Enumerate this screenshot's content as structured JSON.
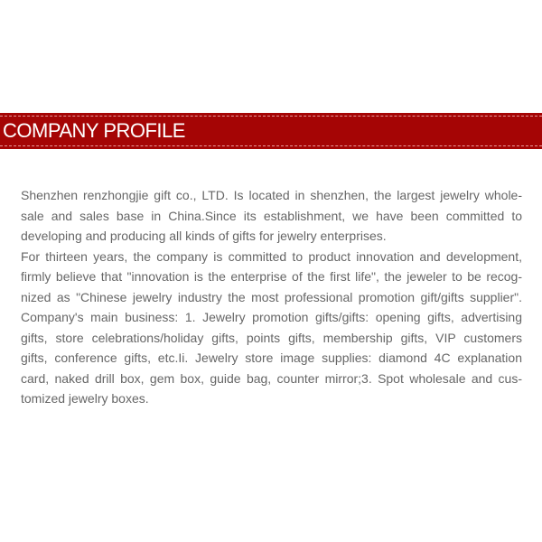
{
  "header": {
    "title": "COMPANY PROFILE",
    "color": "#a50505"
  },
  "body": {
    "lines": [
      "Shenzhen renzhongjie gift co., LTD. Is located in shenzhen, the largest jewelry whole-",
      "sale and sales base in China.Since its establishment, we have been committed to",
      "developing and producing all kinds of gifts for jewelry enterprises.",
      "For thirteen years, the company is committed to product innovation and development,",
      "firmly believe that \"innovation is the enterprise of the first life\", the jeweler to be recog-",
      "nized as \"Chinese jewelry industry the most professional promotion gift/gifts supplier\".",
      "Company's main business: 1. Jewelry promotion gifts/gifts: opening gifts, advertising",
      "gifts, store celebrations/holiday gifts, points gifts, membership gifts, VIP customers",
      "gifts, conference gifts, etc.Ii. Jewelry store image supplies: diamond 4C explanation",
      "card, naked drill box, gem box, guide bag, counter mirror;3. Spot wholesale and cus-",
      "tomized jewelry boxes."
    ]
  }
}
